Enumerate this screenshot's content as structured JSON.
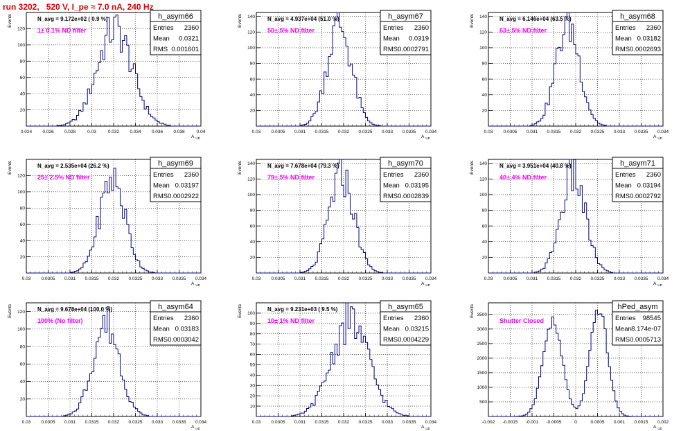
{
  "title": "run 3202,   520 V, I_pe ≈ 7.0 nA, 240 Hz",
  "colors": {
    "histogram": "#000080",
    "filter_label": "#ee00ee",
    "title": "#e00000",
    "grid": "#000000"
  },
  "chart_data": [
    {
      "type": "bar",
      "name": "h_asym66",
      "ylabel": "Events",
      "xlabel": "A_UD",
      "navg": "N_avg = 9.172e+02 ( 0.9 %)",
      "filter": "1± 0.1% ND filter",
      "stats": {
        "entries_label": "Entries",
        "entries": "2360",
        "mean_label": "Mean",
        "mean": "0.0321",
        "rms_label": "RMS",
        "rms": "0.001601"
      },
      "xlim": [
        0.024,
        0.04
      ],
      "ylim": [
        0,
        140
      ],
      "xticks": [
        "0.024",
        "0.026",
        "0.028",
        "0.03",
        "0.032",
        "0.034",
        "0.036",
        "0.038",
        "0.04"
      ],
      "yticks": [
        "20",
        "40",
        "60",
        "80",
        "100",
        "120"
      ],
      "mean": 0.0321,
      "rms": 0.001601,
      "peak": 130
    },
    {
      "type": "bar",
      "name": "h_asym67",
      "ylabel": "Events",
      "xlabel": "A_UD",
      "navg": "N_avg = 4.937e+04 (51.0 %)",
      "filter": "50± 5% ND filter",
      "stats": {
        "entries_label": "Entries",
        "entries": "2360",
        "mean_label": "Mean",
        "mean": "0.0319",
        "rms_label": "RMS",
        "rms": "0.0002791"
      },
      "xlim": [
        0.03,
        0.034
      ],
      "ylim": [
        0,
        145
      ],
      "xticks": [
        "0.03",
        "0.0305",
        "0.031",
        "0.0315",
        "0.032",
        "0.0325",
        "0.033",
        "0.0335",
        "0.034"
      ],
      "yticks": [
        "20",
        "40",
        "60",
        "80",
        "100",
        "120",
        "140"
      ],
      "mean": 0.0319,
      "rms": 0.0002791,
      "peak": 140
    },
    {
      "type": "bar",
      "name": "h_asym68",
      "ylabel": "Events",
      "xlabel": "A_UD",
      "navg": "N_avg = 6.146e+04 (63.5 %)",
      "filter": "63± 5% ND filter",
      "stats": {
        "entries_label": "Entries",
        "entries": "2360",
        "mean_label": "Mean",
        "mean": "0.03182",
        "rms_label": "RMS",
        "rms": "0.0002693"
      },
      "xlim": [
        0.03,
        0.034
      ],
      "ylim": [
        0,
        145
      ],
      "xticks": [
        "0.03",
        "0.0305",
        "0.031",
        "0.0315",
        "0.032",
        "0.0325",
        "0.033",
        "0.0335",
        "0.034"
      ],
      "yticks": [
        "20",
        "40",
        "60",
        "80",
        "100",
        "120",
        "140"
      ],
      "mean": 0.03182,
      "rms": 0.0002693,
      "peak": 142
    },
    {
      "type": "bar",
      "name": "h_asym69",
      "ylabel": "Events",
      "xlabel": "A_UD",
      "navg": "N_avg = 2.535e+04 (26.2 %)",
      "filter": "25± 2.5% ND filter",
      "stats": {
        "entries_label": "Entries",
        "entries": "2360",
        "mean_label": "Mean",
        "mean": "0.03197",
        "rms_label": "RMS",
        "rms": "0.0002922"
      },
      "xlim": [
        0.03,
        0.034
      ],
      "ylim": [
        0,
        140
      ],
      "xticks": [
        "0.03",
        "0.0305",
        "0.031",
        "0.0315",
        "0.032",
        "0.0325",
        "0.033",
        "0.0335",
        "0.034"
      ],
      "yticks": [
        "20",
        "40",
        "60",
        "80",
        "100",
        "120"
      ],
      "mean": 0.03197,
      "rms": 0.0002922,
      "peak": 126
    },
    {
      "type": "bar",
      "name": "h_asym70",
      "ylabel": "Events",
      "xlabel": "A_UD",
      "navg": "N_avg = 7.678e+04 (79.3 %)",
      "filter": "79± 5% ND filter",
      "stats": {
        "entries_label": "Entries",
        "entries": "2360",
        "mean_label": "Mean",
        "mean": "0.03195",
        "rms_label": "RMS",
        "rms": "0.0002839"
      },
      "xlim": [
        0.03,
        0.034
      ],
      "ylim": [
        0,
        145
      ],
      "xticks": [
        "0.03",
        "0.0305",
        "0.031",
        "0.0315",
        "0.032",
        "0.0325",
        "0.033",
        "0.0335",
        "0.034"
      ],
      "yticks": [
        "20",
        "40",
        "60",
        "80",
        "100",
        "120",
        "140"
      ],
      "mean": 0.03195,
      "rms": 0.0002839,
      "peak": 136
    },
    {
      "type": "bar",
      "name": "h_asym71",
      "ylabel": "Events",
      "xlabel": "A_UD",
      "navg": "N_avg = 3.951e+04 (40.8 %)",
      "filter": "40± 4% ND filter",
      "stats": {
        "entries_label": "Entries",
        "entries": "2360",
        "mean_label": "Mean",
        "mean": "0.03194",
        "rms_label": "RMS",
        "rms": "0.0002792"
      },
      "xlim": [
        0.03,
        0.034
      ],
      "ylim": [
        0,
        145
      ],
      "xticks": [
        "0.03",
        "0.0305",
        "0.031",
        "0.0315",
        "0.032",
        "0.0325",
        "0.033",
        "0.0335",
        "0.034"
      ],
      "yticks": [
        "20",
        "40",
        "60",
        "80",
        "100",
        "120",
        "140"
      ],
      "mean": 0.03194,
      "rms": 0.0002792,
      "peak": 135
    },
    {
      "type": "bar",
      "name": "h_asym64",
      "ylabel": "Events",
      "xlabel": "A_UD",
      "navg": "N_avg = 9.678e+04 (100.0 %)",
      "filter": "100% (No filter)",
      "stats": {
        "entries_label": "Entries",
        "entries": "2360",
        "mean_label": "Mean",
        "mean": "0.03183",
        "rms_label": "RMS",
        "rms": "0.0003042"
      },
      "xlim": [
        0.03,
        0.034
      ],
      "ylim": [
        0,
        130
      ],
      "xticks": [
        "0.03",
        "0.0305",
        "0.031",
        "0.0315",
        "0.032",
        "0.0325",
        "0.033",
        "0.0335",
        "0.034"
      ],
      "yticks": [
        "20",
        "40",
        "60",
        "80",
        "100",
        "120"
      ],
      "mean": 0.03183,
      "rms": 0.0003042,
      "peak": 116
    },
    {
      "type": "bar",
      "name": "h_asym65",
      "ylabel": "Events",
      "xlabel": "A_UD",
      "navg": "N_avg = 9.231e+03 ( 9.5 %)",
      "filter": "10± 1% ND filter",
      "stats": {
        "entries_label": "Entries",
        "entries": "2360",
        "mean_label": "Mean",
        "mean": "0.03215",
        "rms_label": "RMS",
        "rms": "0.0004229"
      },
      "xlim": [
        0.03,
        0.034
      ],
      "ylim": [
        0,
        110
      ],
      "xticks": [
        "0.03",
        "0.0305",
        "0.031",
        "0.0315",
        "0.032",
        "0.0325",
        "0.033",
        "0.0335",
        "0.034"
      ],
      "yticks": [
        "10",
        "20",
        "30",
        "40",
        "50",
        "60",
        "70",
        "80",
        "90",
        "100"
      ],
      "mean": 0.03215,
      "rms": 0.0004229,
      "peak": 100
    },
    {
      "type": "bar",
      "name": "hPed_asym",
      "ylabel": "Events",
      "xlabel": "A_UD",
      "navg": "",
      "filter": "Shutter Closed",
      "stats": {
        "entries_label": "Entries",
        "entries": "98545",
        "mean_label": "Mean",
        "mean": "8.174e-07",
        "rms_label": "RMS",
        "rms": "0.0005713"
      },
      "xlim": [
        -0.002,
        0.002
      ],
      "ylim": [
        0,
        3900
      ],
      "xticks": [
        "-0.002",
        "-0.0015",
        "-0.001",
        "-0.0005",
        "0",
        "0.0005",
        "0.001",
        "0.0015",
        "0.002"
      ],
      "yticks": [
        "500",
        "1000",
        "1500",
        "2000",
        "2500",
        "3000",
        "3500"
      ],
      "bimodal": [
        {
          "mean": -0.00053,
          "sigma": 0.00022,
          "peak": 3250
        },
        {
          "mean": 0.00053,
          "sigma": 0.0002,
          "peak": 3700
        }
      ]
    }
  ]
}
